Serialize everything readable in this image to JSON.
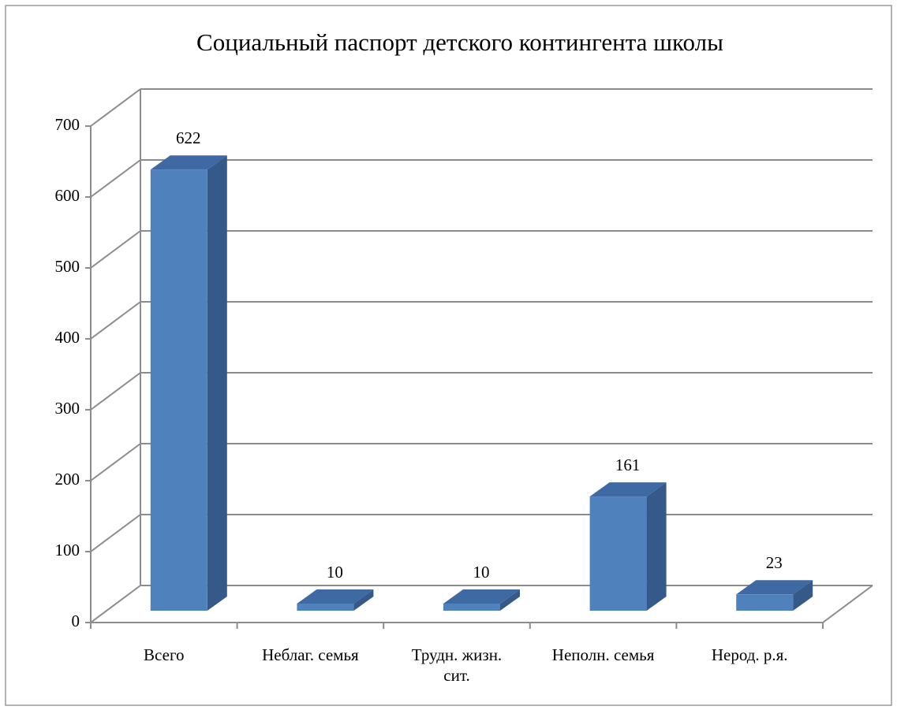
{
  "chart_data": {
    "type": "bar3d",
    "title": "Социальный паспорт детского контингента школы",
    "categories": [
      "Всего",
      "Неблаг. семья",
      "Трудн. жизн. сит.",
      "Неполн. семья",
      "Нерод. р.я."
    ],
    "values": [
      622,
      10,
      10,
      161,
      23
    ],
    "color": "#4f81bd",
    "ylim": [
      0,
      700
    ],
    "yticks": [
      0,
      100,
      200,
      300,
      400,
      500,
      600,
      700
    ],
    "grid": true
  }
}
